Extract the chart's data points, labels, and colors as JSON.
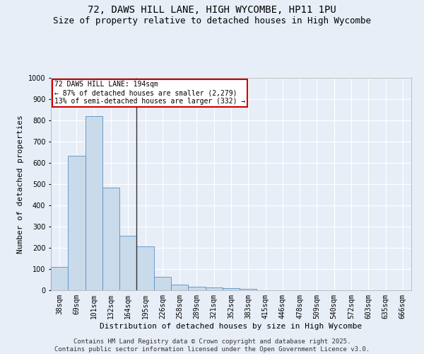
{
  "title1": "72, DAWS HILL LANE, HIGH WYCOMBE, HP11 1PU",
  "title2": "Size of property relative to detached houses in High Wycombe",
  "xlabel": "Distribution of detached houses by size in High Wycombe",
  "ylabel": "Number of detached properties",
  "categories": [
    "38sqm",
    "69sqm",
    "101sqm",
    "132sqm",
    "164sqm",
    "195sqm",
    "226sqm",
    "258sqm",
    "289sqm",
    "321sqm",
    "352sqm",
    "383sqm",
    "415sqm",
    "446sqm",
    "478sqm",
    "509sqm",
    "540sqm",
    "572sqm",
    "603sqm",
    "635sqm",
    "666sqm"
  ],
  "values": [
    110,
    635,
    820,
    483,
    257,
    208,
    65,
    26,
    18,
    13,
    10,
    8,
    0,
    0,
    0,
    0,
    0,
    0,
    0,
    0,
    0
  ],
  "bar_color": "#c9daea",
  "bar_edge_color": "#5a8fc3",
  "annotation_text": "72 DAWS HILL LANE: 194sqm\n← 87% of detached houses are smaller (2,279)\n13% of semi-detached houses are larger (332) →",
  "annotation_box_color": "#ffffff",
  "annotation_border_color": "#cc0000",
  "vline_x": 4.5,
  "vline_color": "#333333",
  "ylim": [
    0,
    1000
  ],
  "yticks": [
    0,
    100,
    200,
    300,
    400,
    500,
    600,
    700,
    800,
    900,
    1000
  ],
  "background_color": "#e8eef8",
  "grid_color": "#ffffff",
  "footer": "Contains HM Land Registry data © Crown copyright and database right 2025.\nContains public sector information licensed under the Open Government Licence v3.0.",
  "title1_fontsize": 10,
  "title2_fontsize": 9,
  "xlabel_fontsize": 8,
  "ylabel_fontsize": 8,
  "tick_fontsize": 7,
  "footer_fontsize": 6.5,
  "annot_fontsize": 7
}
